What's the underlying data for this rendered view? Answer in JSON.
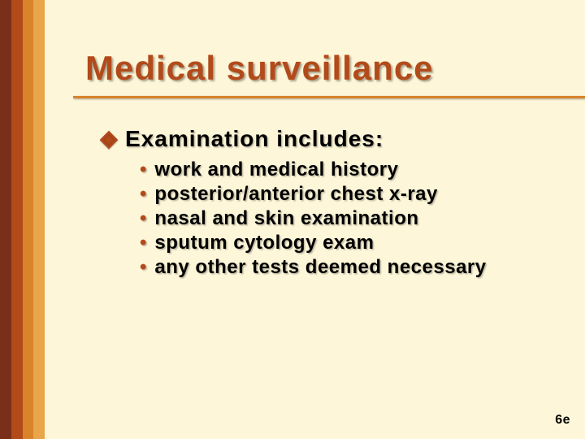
{
  "colors": {
    "background": "#fdf6d8",
    "stripe1": "#7a2f1a",
    "stripe2": "#b24a1a",
    "stripe3": "#d9832b",
    "stripe4": "#e8a54a",
    "title_rule": "#d9832b",
    "title_text": "#b24a1a",
    "bullet_diamond": "#b24a1a",
    "body_text": "#000000",
    "dot_color": "#b24a1a",
    "slidenum_text": "#000000"
  },
  "typography": {
    "title_fontsize": 42,
    "lvl1_fontsize": 28,
    "lvl2_fontsize": 24,
    "dot_fontsize": 24,
    "slidenum_fontsize": 16
  },
  "title": "Medical surveillance",
  "lvl1_text": "Examination includes:",
  "bullets": [
    "work and medical history",
    "posterior/anterior chest x-ray",
    "nasal and skin examination",
    "sputum cytology exam",
    "any other tests deemed necessary"
  ],
  "slide_number": "6e"
}
